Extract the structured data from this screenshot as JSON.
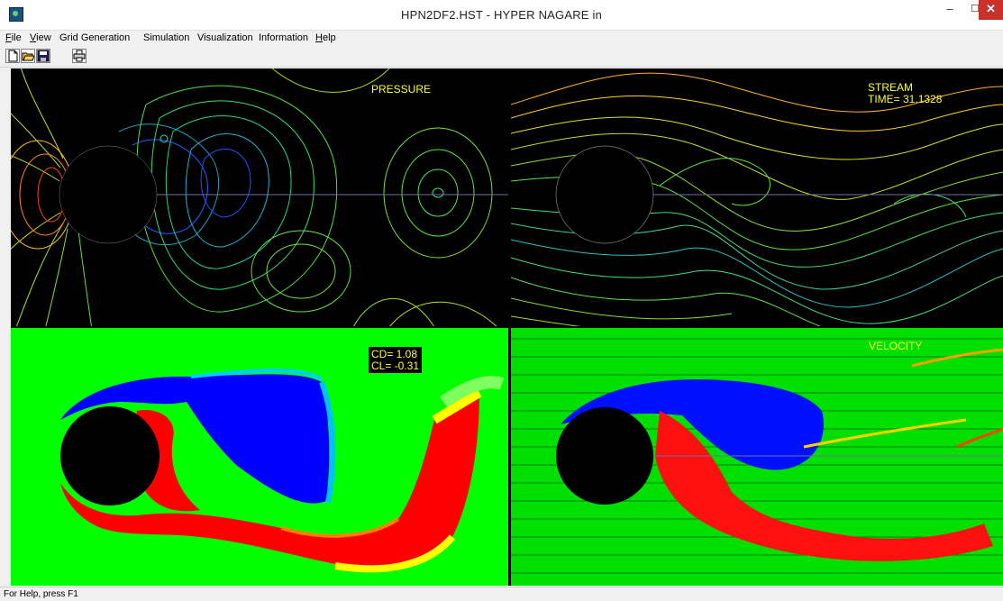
{
  "window": {
    "title": "HPN2DF2.HST - HYPER NAGARE in",
    "min_glyph": "–",
    "max_glyph": "☐",
    "close_glyph": "✕"
  },
  "menu": [
    {
      "label": "File",
      "ul": "F",
      "rest": "ile"
    },
    {
      "label": "View",
      "ul": "V",
      "rest": "iew"
    },
    {
      "label": "Grid Generation",
      "ul": "",
      "rest": "Grid Generation"
    },
    {
      "label": "Simulation",
      "ul": "",
      "rest": "Simulation"
    },
    {
      "label": "Visualization",
      "ul": "",
      "rest": "Visualization"
    },
    {
      "label": "Information",
      "ul": "",
      "rest": "Information"
    },
    {
      "label": "Help",
      "ul": "H",
      "rest": "elp"
    }
  ],
  "toolbar": {
    "icons": [
      "new-file-icon",
      "open-folder-icon",
      "save-disk-icon",
      "print-icon"
    ]
  },
  "panels": {
    "pressure": {
      "label": "PRESSURE"
    },
    "stream": {
      "label": "STREAM",
      "time": "TIME= 31.1328"
    },
    "vorticity": {
      "cd": "CD= 1.08",
      "cl": "CL= -0.31"
    },
    "velocity": {
      "label": "VELOCITY"
    }
  },
  "status": {
    "text": "For Help, press F1"
  },
  "colors": {
    "plot_bg": "#000000",
    "field_bg": "#00ff00",
    "label": "#ffff30"
  }
}
